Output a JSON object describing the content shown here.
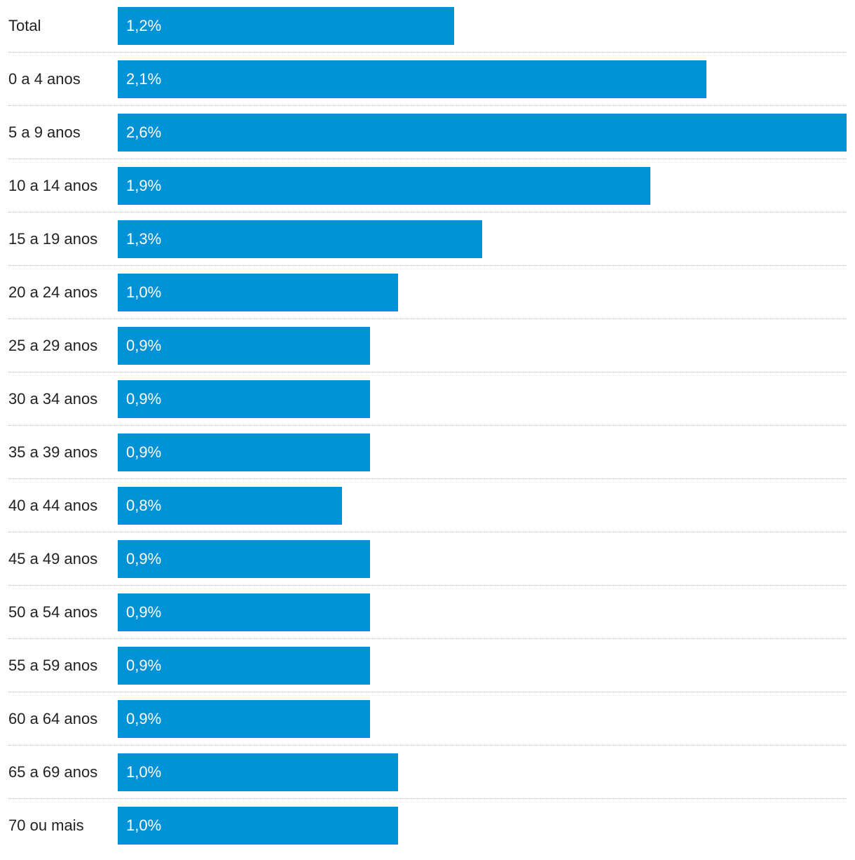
{
  "chart_data": {
    "type": "bar",
    "orientation": "horizontal",
    "title": "",
    "xlabel": "",
    "ylabel": "",
    "xlim": [
      0,
      2.6
    ],
    "bar_color": "#0092d7",
    "categories": [
      "Total",
      "0 a 4 anos",
      "5 a 9 anos",
      "10 a 14 anos",
      "15 a 19 anos",
      "20 a 24 anos",
      "25 a 29 anos",
      "30 a 34 anos",
      "35 a 39 anos",
      "40 a 44 anos",
      "45 a 49 anos",
      "50 a 54 anos",
      "55 a 59 anos",
      "60 a 64 anos",
      "65 a 69 anos",
      "70 ou mais"
    ],
    "values": [
      1.2,
      2.1,
      2.6,
      1.9,
      1.3,
      1.0,
      0.9,
      0.9,
      0.9,
      0.8,
      0.9,
      0.9,
      0.9,
      0.9,
      1.0,
      1.0
    ],
    "value_labels": [
      "1,2%",
      "2,1%",
      "2,6%",
      "1,9%",
      "1,3%",
      "1,0%",
      "0,9%",
      "0,9%",
      "0,9%",
      "0,8%",
      "0,9%",
      "0,9%",
      "0,9%",
      "0,9%",
      "1,0%",
      "1,0%"
    ]
  }
}
